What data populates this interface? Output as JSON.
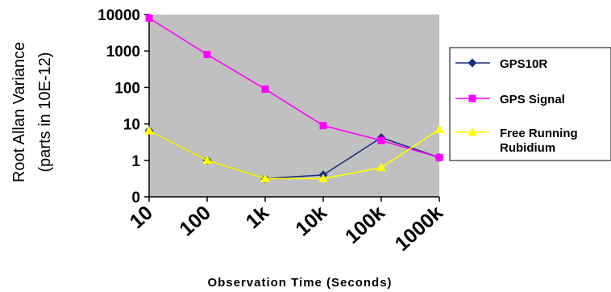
{
  "chart_data": {
    "type": "line",
    "x": [
      "10",
      "100",
      "1k",
      "10k",
      "100k",
      "1000k"
    ],
    "y_ticks": [
      "0",
      "1",
      "10",
      "100",
      "1000",
      "10000"
    ],
    "xlabel": "Observation Time (Seconds)",
    "ylabel": [
      "Root Allan Variance",
      "(parts in 10E-12)"
    ],
    "y_scale": "log",
    "ylim": [
      0,
      10000
    ],
    "grid": false,
    "plot_background": "#c0c0c0",
    "legend_position": "right",
    "series": [
      {
        "name": "GPS10R",
        "color": "#1a2a80",
        "marker": "diamond",
        "values": [
          6.5,
          1,
          0.5,
          0.6,
          4.2,
          1.2
        ]
      },
      {
        "name": "GPS Signal",
        "color": "#ff00ff",
        "marker": "square",
        "values": [
          8000,
          800,
          90,
          9,
          3.5,
          1.2
        ]
      },
      {
        "name": "Free Running Rubidium",
        "color": "#ffff00",
        "marker": "triangle",
        "values": [
          6.5,
          1,
          0.5,
          0.5,
          0.8,
          7
        ]
      }
    ]
  },
  "legend_labels": {
    "gps10r": "GPS10R",
    "gps_signal": "GPS Signal",
    "rubidium_line1": "Free Running",
    "rubidium_line2": "Rubidium"
  }
}
